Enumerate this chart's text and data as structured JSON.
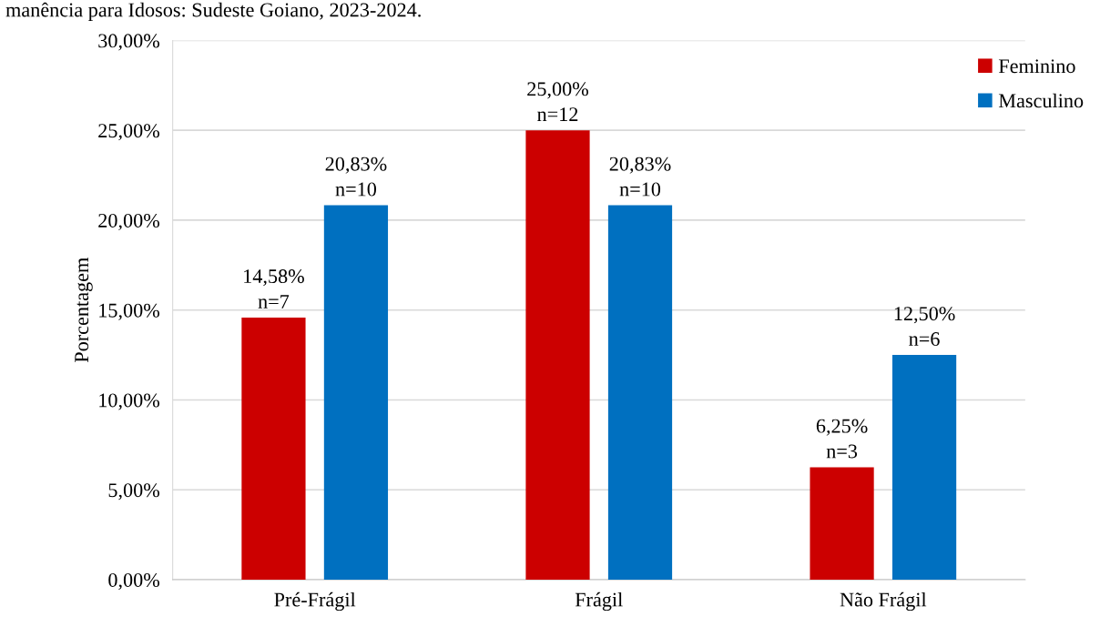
{
  "chart_data": {
    "type": "bar",
    "ylabel": "Porcentagem",
    "annotations": [
      "manência para Idosos: Sudeste Goiano, 2023-2024."
    ],
    "categories": [
      "Pré-Frágil",
      "Frágil",
      "Não Frágil"
    ],
    "series": [
      {
        "name": "Feminino",
        "color": "#cc0000",
        "values": [
          14.58,
          25.0,
          6.25
        ],
        "value_labels": [
          "14,58%\nn=7",
          "25,00%\nn=12",
          "6,25%\nn=3"
        ]
      },
      {
        "name": "Masculino",
        "color": "#0070c0",
        "values": [
          20.83,
          20.83,
          12.5
        ],
        "value_labels": [
          "20,83%\nn=10",
          "20,83%\nn=10",
          "12,50%\nn=6"
        ]
      }
    ],
    "ylim": [
      0,
      30
    ],
    "yticks": [
      {
        "value": 0,
        "label": "0,00%"
      },
      {
        "value": 5,
        "label": "5,00%"
      },
      {
        "value": 10,
        "label": "10,00%"
      },
      {
        "value": 15,
        "label": "15,00%"
      },
      {
        "value": 20,
        "label": "20,00%"
      },
      {
        "value": 25,
        "label": "25,00%"
      },
      {
        "value": 30,
        "label": "30,00%"
      }
    ],
    "grid": "y",
    "legend": "top right"
  }
}
